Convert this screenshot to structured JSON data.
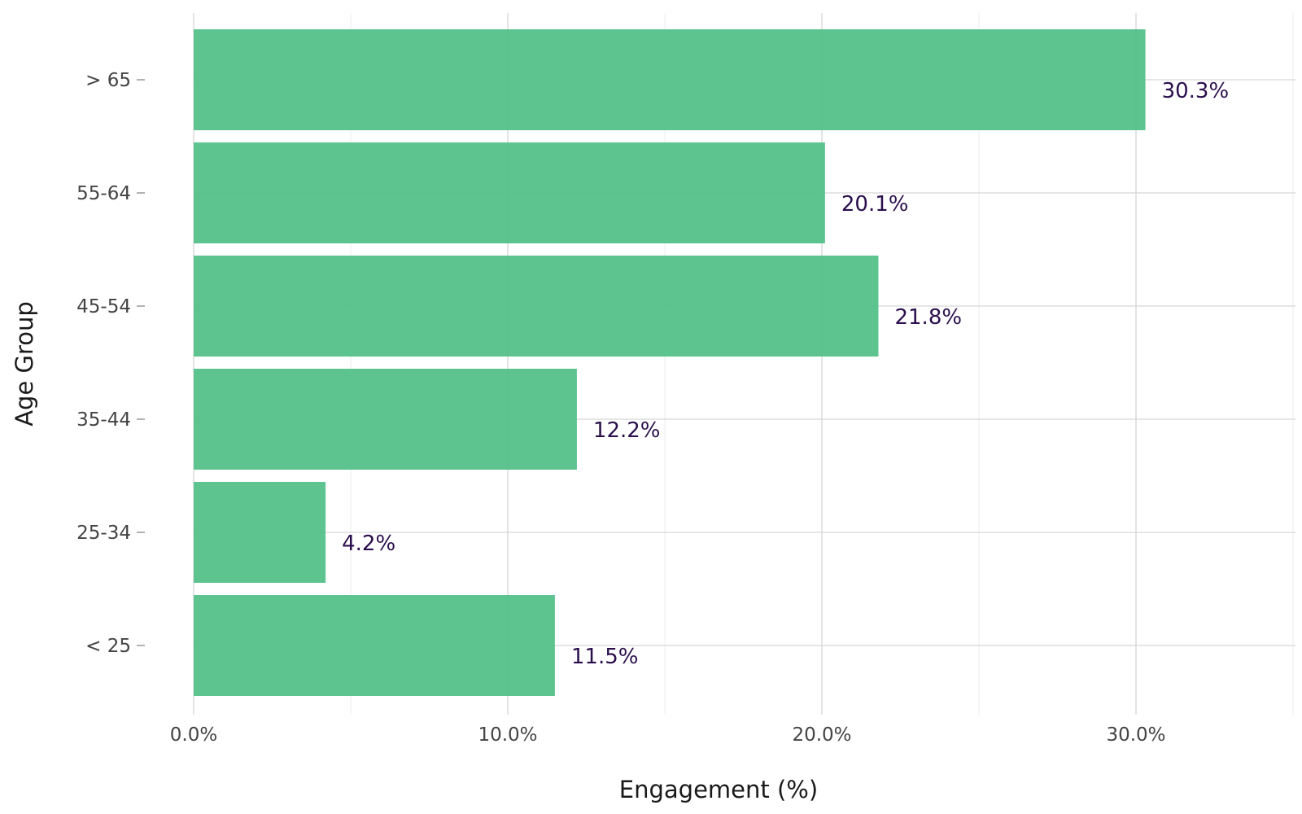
{
  "chart_data": {
    "type": "bar",
    "orientation": "horizontal",
    "categories": [
      "< 25",
      "25-34",
      "35-44",
      "45-54",
      "55-64",
      "> 65"
    ],
    "values": [
      11.5,
      4.2,
      12.2,
      21.8,
      20.1,
      30.3
    ],
    "value_labels": [
      "11.5%",
      "4.2%",
      "12.2%",
      "21.8%",
      "20.1%",
      "30.3%"
    ],
    "xlabel": "Engagement (%)",
    "ylabel": "Age Group",
    "xlim": [
      0,
      35
    ],
    "x_ticks": [
      0,
      10,
      20,
      30
    ],
    "x_tick_labels": [
      "0.0%",
      "10.0%",
      "20.0%",
      "30.0%"
    ],
    "grid": true,
    "legend": "none",
    "bar_color": "#4fbf87",
    "label_color": "#2b0f4c"
  }
}
